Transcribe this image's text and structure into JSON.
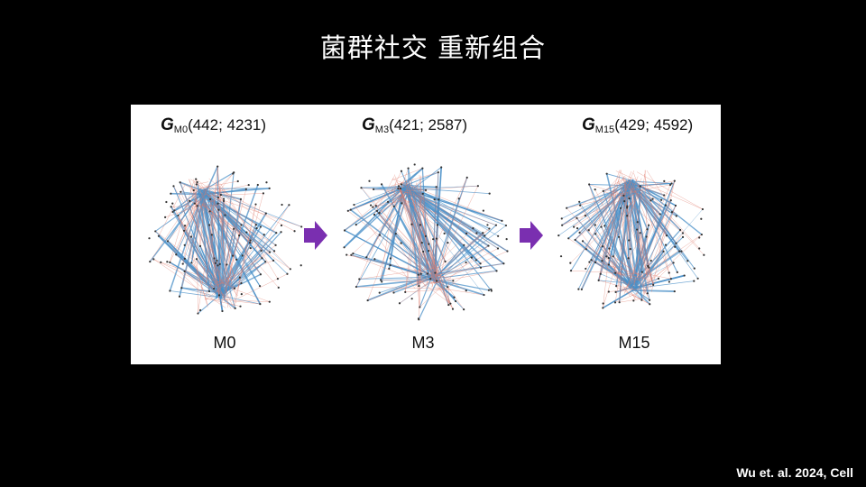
{
  "slide": {
    "title": "菌群社交 重新组合",
    "citation": "Wu et. al. 2024, Cell"
  },
  "networks": [
    {
      "graph_symbol": "G",
      "subscript": "M0",
      "stats": "(442; 4231)",
      "label": "M0"
    },
    {
      "graph_symbol": "G",
      "subscript": "M3",
      "stats": "(421; 2587)",
      "label": "M3"
    },
    {
      "graph_symbol": "G",
      "subscript": "M15",
      "stats": "(429; 4592)",
      "label": "M15"
    }
  ],
  "colors": {
    "positive_edge": "#4a90c8",
    "negative_edge": "#e07a6a",
    "arrow": "#7a2fb0",
    "node": "#333333"
  }
}
